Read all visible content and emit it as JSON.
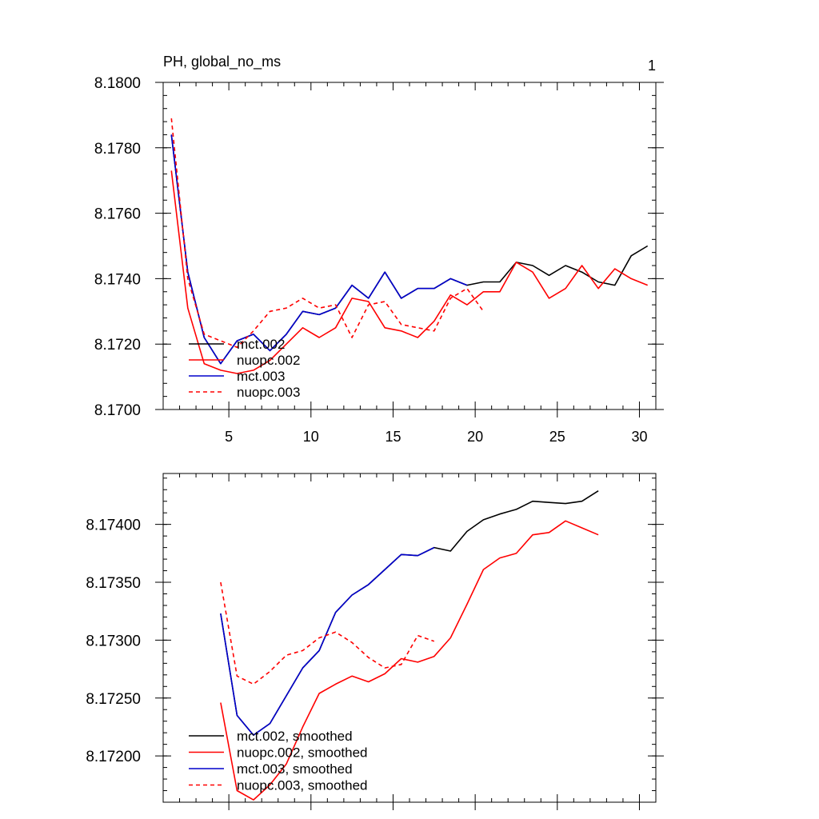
{
  "chart_data": [
    {
      "type": "line",
      "title": "PH, global_no_ms",
      "title_right": "1",
      "xlim": [
        1,
        31
      ],
      "ylim": [
        8.17,
        8.18
      ],
      "x_ticks": [
        5,
        10,
        15,
        20,
        25,
        30
      ],
      "y_ticks": [
        8.17,
        8.172,
        8.174,
        8.176,
        8.178,
        8.18
      ],
      "y_tick_labels": [
        "8.1700",
        "8.1720",
        "8.1740",
        "8.1760",
        "8.1780",
        "8.1800"
      ],
      "legend_position": "bottom-left",
      "series": [
        {
          "name": "mct.002",
          "color": "#000000",
          "dash": false,
          "x": [
            1.5,
            2.5,
            3.5,
            4.5,
            5.5,
            6.5,
            7.5,
            8.5,
            9.5,
            10.5,
            11.5,
            12.5,
            13.5,
            14.5,
            15.5,
            16.5,
            17.5,
            18.5,
            19.5,
            20.5,
            21.5,
            22.5,
            23.5,
            24.5,
            25.5,
            26.5,
            27.5,
            28.5,
            29.5,
            30.5
          ],
          "y": [
            8.1784,
            8.1742,
            8.1722,
            8.1714,
            8.1721,
            8.1723,
            8.1718,
            8.1723,
            8.173,
            8.1729,
            8.1731,
            8.1738,
            8.1734,
            8.1742,
            8.1734,
            8.1737,
            8.1737,
            8.174,
            8.1738,
            8.1739,
            8.1739,
            8.1745,
            8.1744,
            8.1741,
            8.1744,
            8.1742,
            8.1739,
            8.1738,
            8.1747,
            8.175
          ]
        },
        {
          "name": "nuopc.002",
          "color": "#ff0000",
          "dash": false,
          "x": [
            1.5,
            2.5,
            3.5,
            4.5,
            5.5,
            6.5,
            7.5,
            8.5,
            9.5,
            10.5,
            11.5,
            12.5,
            13.5,
            14.5,
            15.5,
            16.5,
            17.5,
            18.5,
            19.5,
            20.5,
            21.5,
            22.5,
            23.5,
            24.5,
            25.5,
            26.5,
            27.5,
            28.5,
            29.5,
            30.5
          ],
          "y": [
            8.1773,
            8.1731,
            8.1714,
            8.1712,
            8.1711,
            8.1712,
            8.1715,
            8.172,
            8.1725,
            8.1722,
            8.1725,
            8.1734,
            8.1733,
            8.1725,
            8.1724,
            8.1722,
            8.1727,
            8.1735,
            8.1732,
            8.1736,
            8.1736,
            8.1745,
            8.1742,
            8.1734,
            8.1737,
            8.1744,
            8.1737,
            8.1743,
            8.174,
            8.1738
          ]
        },
        {
          "name": "mct.003",
          "color": "#0000cc",
          "dash": false,
          "x": [
            1.5,
            2.5,
            3.5,
            4.5,
            5.5,
            6.5,
            7.5,
            8.5,
            9.5,
            10.5,
            11.5,
            12.5,
            13.5,
            14.5,
            15.5,
            16.5,
            17.5,
            18.5,
            19.5
          ],
          "y": [
            8.1784,
            8.1742,
            8.1722,
            8.1714,
            8.1721,
            8.1723,
            8.1718,
            8.1723,
            8.173,
            8.1729,
            8.1731,
            8.1738,
            8.1734,
            8.1742,
            8.1734,
            8.1737,
            8.1737,
            8.174,
            8.1738
          ]
        },
        {
          "name": "nuopc.003",
          "color": "#ff0000",
          "dash": true,
          "x": [
            1.5,
            2.5,
            3.5,
            4.5,
            5.5,
            6.5,
            7.5,
            8.5,
            9.5,
            10.5,
            11.5,
            12.5,
            13.5,
            14.5,
            15.5,
            16.5,
            17.5,
            18.5,
            19.5,
            20.5
          ],
          "y": [
            8.1789,
            8.174,
            8.1723,
            8.1721,
            8.1719,
            8.1724,
            8.173,
            8.1731,
            8.1734,
            8.1731,
            8.1732,
            8.1722,
            8.1732,
            8.1733,
            8.1726,
            8.1725,
            8.1724,
            8.1734,
            8.1737,
            8.173
          ]
        }
      ]
    },
    {
      "type": "line",
      "xlim": [
        1,
        31
      ],
      "ylim": [
        8.1716,
        8.17444
      ],
      "x_ticks": [
        5,
        10,
        15,
        20,
        25,
        30
      ],
      "show_x_labels": false,
      "y_ticks": [
        8.172,
        8.1725,
        8.173,
        8.1735,
        8.174
      ],
      "y_tick_labels": [
        "8.17200",
        "8.17250",
        "8.17300",
        "8.17350",
        "8.17400"
      ],
      "legend_position": "bottom-left",
      "series": [
        {
          "name": "mct.002, smoothed",
          "color": "#000000",
          "dash": false,
          "x": [
            4.5,
            5.5,
            6.5,
            7.5,
            8.5,
            9.5,
            10.5,
            11.5,
            12.5,
            13.5,
            14.5,
            15.5,
            16.5,
            17.5,
            18.5,
            19.5,
            20.5,
            21.5,
            22.5,
            23.5,
            24.5,
            25.5,
            26.5,
            27.5
          ],
          "y": [
            8.17323,
            8.17235,
            8.17218,
            8.17228,
            8.17252,
            8.17276,
            8.17291,
            8.17324,
            8.17339,
            8.17348,
            8.17361,
            8.17374,
            8.17373,
            8.1738,
            8.17377,
            8.17394,
            8.17404,
            8.17409,
            8.17413,
            8.1742,
            8.17419,
            8.17418,
            8.1742,
            8.17429
          ]
        },
        {
          "name": "nuopc.002, smoothed",
          "color": "#ff0000",
          "dash": false,
          "x": [
            4.5,
            5.5,
            6.5,
            7.5,
            8.5,
            9.5,
            10.5,
            11.5,
            12.5,
            13.5,
            14.5,
            15.5,
            16.5,
            17.5,
            18.5,
            19.5,
            20.5,
            21.5,
            22.5,
            23.5,
            24.5,
            25.5,
            26.5,
            27.5
          ],
          "y": [
            8.17246,
            8.1717,
            8.17162,
            8.17175,
            8.17193,
            8.17225,
            8.17254,
            8.17262,
            8.17269,
            8.17264,
            8.17271,
            8.17284,
            8.17281,
            8.17286,
            8.17302,
            8.17331,
            8.17361,
            8.17371,
            8.17375,
            8.17391,
            8.17393,
            8.17403,
            8.17397,
            8.17391
          ]
        },
        {
          "name": "mct.003, smoothed",
          "color": "#0000cc",
          "dash": false,
          "x": [
            4.5,
            5.5,
            6.5,
            7.5,
            8.5,
            9.5,
            10.5,
            11.5,
            12.5,
            13.5,
            14.5,
            15.5,
            16.5,
            17.5
          ],
          "y": [
            8.17323,
            8.17235,
            8.17218,
            8.17228,
            8.17252,
            8.17276,
            8.17291,
            8.17324,
            8.17339,
            8.17348,
            8.17361,
            8.17374,
            8.17373,
            8.1738
          ]
        },
        {
          "name": "nuopc.003, smoothed",
          "color": "#ff0000",
          "dash": true,
          "x": [
            4.5,
            5.5,
            6.5,
            7.5,
            8.5,
            9.5,
            10.5,
            11.5,
            12.5,
            13.5,
            14.5,
            15.5,
            16.5,
            17.5
          ],
          "y": [
            8.1735,
            8.17269,
            8.17262,
            8.17273,
            8.17287,
            8.17291,
            8.17302,
            8.17307,
            8.17298,
            8.17285,
            8.17276,
            8.17279,
            8.17304,
            8.17299
          ]
        }
      ]
    }
  ]
}
